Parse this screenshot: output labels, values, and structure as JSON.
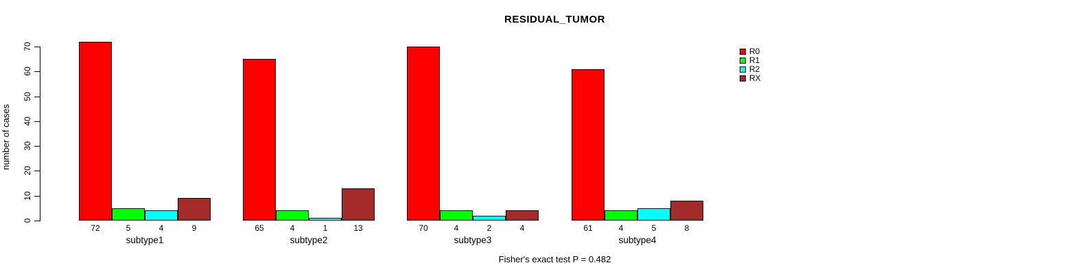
{
  "title": "RESIDUAL_TUMOR",
  "footer": "Fisher's exact test P = 0.482",
  "y_axis_label": "number of cases",
  "chart_data": {
    "type": "bar",
    "title": "RESIDUAL_TUMOR",
    "xlabel": "",
    "ylabel": "number of cases",
    "annotation": "Fisher's exact test P = 0.482",
    "categories": [
      "subtype1",
      "subtype2",
      "subtype3",
      "subtype4"
    ],
    "series": [
      {
        "name": "R0",
        "color": "#FF0000",
        "values": [
          72,
          65,
          70,
          61
        ]
      },
      {
        "name": "R1",
        "color": "#00FF00",
        "values": [
          5,
          4,
          4,
          4
        ]
      },
      {
        "name": "R2",
        "color": "#00FFFF",
        "values": [
          4,
          1,
          2,
          5
        ]
      },
      {
        "name": "RX",
        "color": "#A52A2A",
        "values": [
          9,
          13,
          4,
          8
        ]
      }
    ],
    "yticks": [
      0,
      10,
      20,
      30,
      40,
      50,
      60,
      70
    ],
    "ylim": [
      0,
      70
    ],
    "bar_value_labels_shown": true,
    "grid": false,
    "legend_position": "top-right",
    "background_color": "#FFFFFF",
    "axis_color": "#000000"
  }
}
